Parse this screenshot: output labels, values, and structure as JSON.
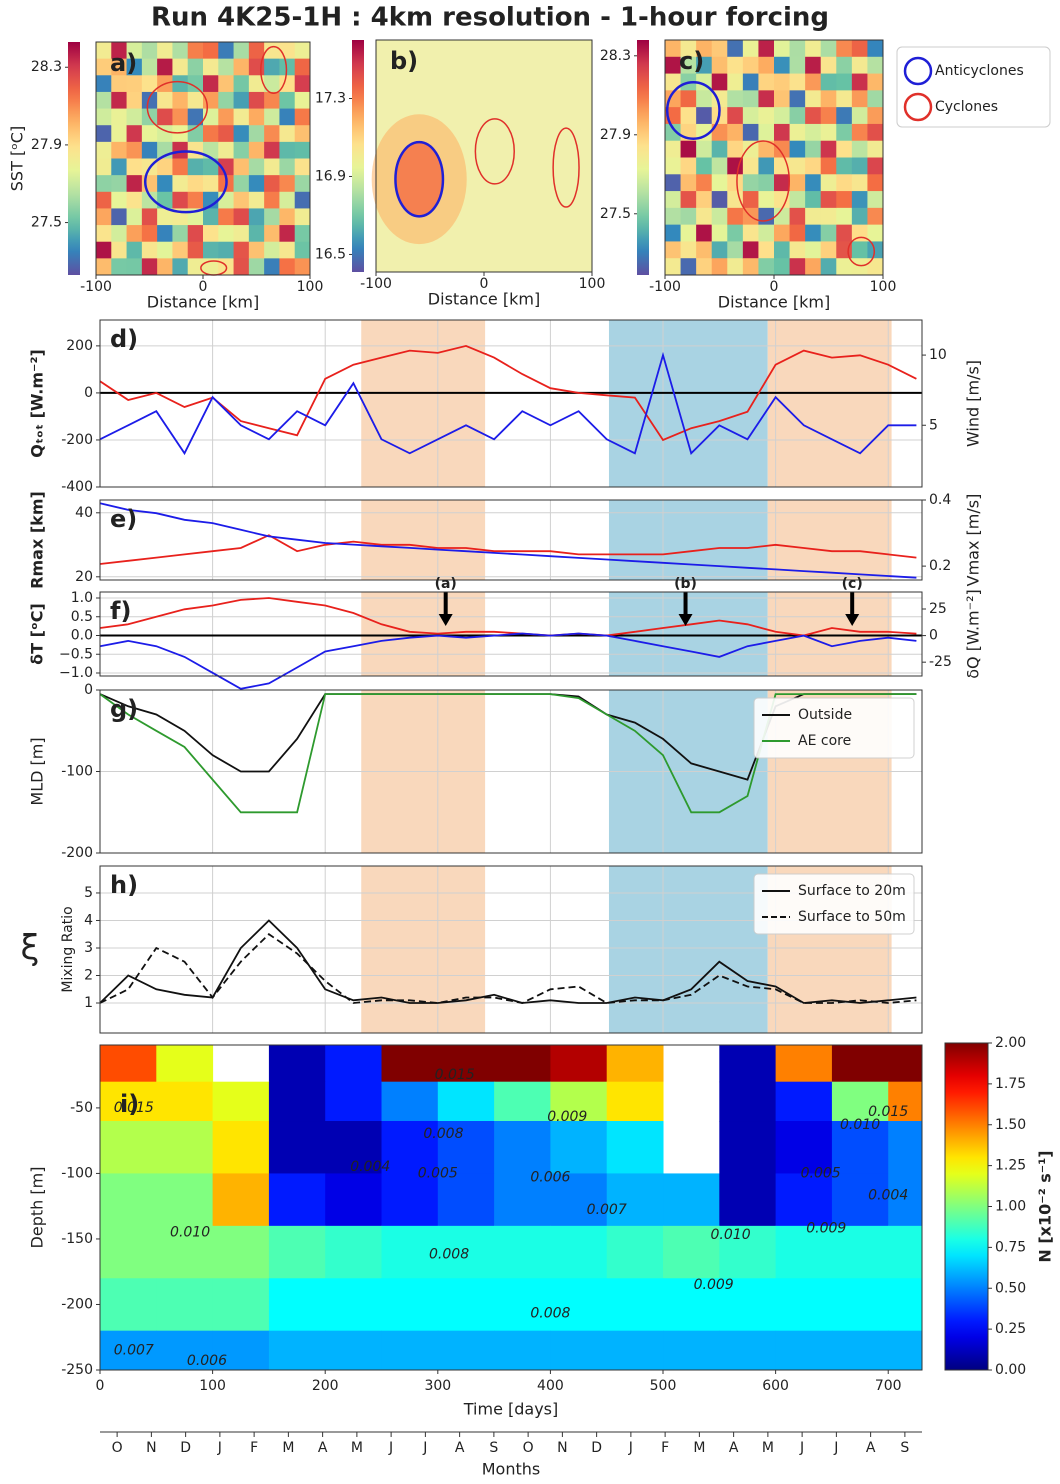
{
  "title": "Run 4K25-1H : 4km resolution - 1-hour forcing",
  "eddy_legend": [
    {
      "name": "Anticyclones",
      "color": "#1f1fd6"
    },
    {
      "name": "Cyclones",
      "color": "#e0302a"
    }
  ],
  "periods": [
    {
      "x0": 232,
      "x1": 342,
      "color": "#f9d8bc"
    },
    {
      "x0": 452,
      "x1": 593,
      "color": "#a9d3e3"
    },
    {
      "x0": 593,
      "x1": 703,
      "color": "#f9d8bc"
    }
  ],
  "months_axis": {
    "label": "Months",
    "ticks": [
      "O",
      "N",
      "D",
      "J",
      "F",
      "M",
      "A",
      "M",
      "J",
      "J",
      "A",
      "S",
      "O",
      "N",
      "D",
      "J",
      "F",
      "M",
      "A",
      "M",
      "J",
      "J",
      "A",
      "S"
    ]
  },
  "chart_data": [
    {
      "type": "map",
      "panel_label": "a)",
      "ylabel": "SST [ᵒC]",
      "xlabel": "Distance [km]",
      "xlim": [
        -100,
        100
      ],
      "xticks": [
        -100,
        0,
        100
      ],
      "clim": [
        27.23,
        28.43
      ],
      "cticks": [
        27.5,
        27.9,
        28.3
      ]
    },
    {
      "type": "map",
      "panel_label": "b)",
      "xlabel": "Distance [km]",
      "xlim": [
        -100,
        100
      ],
      "xticks": [
        -100,
        0,
        100
      ],
      "clim": [
        16.41,
        17.6
      ],
      "cticks": [
        16.5,
        16.9,
        17.3
      ]
    },
    {
      "type": "map",
      "panel_label": "c)",
      "xlabel": "Distance [km]",
      "xlim": [
        -100,
        100
      ],
      "xticks": [
        -100,
        0,
        100
      ],
      "clim": [
        27.19,
        28.38
      ],
      "cticks": [
        27.5,
        27.9,
        28.3
      ]
    },
    {
      "type": "line",
      "panel_label": "d)",
      "ylabel": "Qₜₒₜ [W.m⁻²]",
      "y2label": "Wind [m/s]",
      "grid": true,
      "zero_line": true,
      "xlim": [
        0,
        730
      ],
      "xticks": [
        0,
        100,
        200,
        300,
        400,
        500,
        600,
        700
      ],
      "ylim": [
        -400,
        310
      ],
      "yticks": [
        -400,
        -200,
        0,
        200
      ],
      "y2lim": [
        0.6,
        12.5
      ],
      "y2ticks": [
        5,
        10
      ],
      "x": [
        0,
        25,
        50,
        75,
        100,
        125,
        150,
        175,
        200,
        225,
        250,
        275,
        300,
        325,
        350,
        375,
        400,
        425,
        450,
        475,
        500,
        525,
        550,
        575,
        600,
        625,
        650,
        675,
        700,
        725
      ],
      "series": [
        {
          "color": "#e8211c",
          "values": [
            50,
            -30,
            0,
            -60,
            -20,
            -120,
            -150,
            -180,
            60,
            120,
            150,
            180,
            170,
            200,
            150,
            80,
            20,
            0,
            -10,
            -20,
            -200,
            -150,
            -120,
            -80,
            120,
            180,
            150,
            160,
            120,
            60
          ]
        },
        {
          "color": "#1c1ce8",
          "axis": "y2",
          "values": [
            4,
            5,
            6,
            3,
            7,
            5,
            4,
            6,
            5,
            8,
            4,
            3,
            4,
            5,
            4,
            6,
            5,
            6,
            4,
            3,
            10,
            3,
            5,
            4,
            7,
            5,
            4,
            3,
            5,
            5
          ]
        }
      ]
    },
    {
      "type": "line",
      "panel_label": "e)",
      "ylabel": "Rmax [km]",
      "y2label": "Vmax [m/s]",
      "grid": true,
      "xlim": [
        0,
        730
      ],
      "xticks": [
        0,
        100,
        200,
        300,
        400,
        500,
        600,
        700
      ],
      "ylim": [
        19,
        44
      ],
      "yticks": [
        20,
        40
      ],
      "y2lim": [
        0.158,
        0.4
      ],
      "y2ticks": [
        0.2,
        0.4
      ],
      "x": [
        0,
        25,
        50,
        75,
        100,
        125,
        150,
        175,
        200,
        225,
        250,
        275,
        300,
        325,
        350,
        375,
        400,
        425,
        450,
        475,
        500,
        525,
        550,
        575,
        600,
        625,
        650,
        675,
        700,
        725
      ],
      "series": [
        {
          "color": "#e8211c",
          "values": [
            24,
            25,
            26,
            27,
            28,
            29,
            33,
            28,
            30,
            31,
            30,
            30,
            29,
            29,
            28,
            28,
            28,
            27,
            27,
            27,
            27,
            28,
            29,
            29,
            30,
            29,
            28,
            28,
            27,
            26
          ]
        },
        {
          "color": "#1c1ce8",
          "axis": "y2",
          "values": [
            0.39,
            0.37,
            0.36,
            0.34,
            0.33,
            0.31,
            0.29,
            0.28,
            0.27,
            0.265,
            0.26,
            0.255,
            0.25,
            0.245,
            0.24,
            0.235,
            0.23,
            0.225,
            0.22,
            0.215,
            0.21,
            0.205,
            0.2,
            0.195,
            0.19,
            0.185,
            0.18,
            0.175,
            0.17,
            0.165
          ]
        }
      ]
    },
    {
      "type": "line",
      "panel_label": "f)",
      "ylabel": "δT [ᵒC]",
      "y2label": "δQ [W.m⁻²]",
      "grid": true,
      "zero_line": true,
      "xlim": [
        0,
        730
      ],
      "xticks": [
        0,
        100,
        200,
        300,
        400,
        500,
        600,
        700
      ],
      "ylim": [
        -1.08,
        1.16
      ],
      "yticks": [
        {
          "value": -1,
          "label": "−1.0"
        },
        {
          "value": -0.5,
          "label": "−0.5"
        },
        {
          "value": 0,
          "label": "0.0"
        },
        {
          "value": 0.5,
          "label": "0.5"
        },
        {
          "value": 1,
          "label": "1.0"
        }
      ],
      "y2lim": [
        -38,
        41
      ],
      "y2ticks": [
        -25,
        0,
        25
      ],
      "annotations": [
        {
          "text": "(a)",
          "x": 307
        },
        {
          "text": "(b)",
          "x": 520
        },
        {
          "text": "(c)",
          "x": 668
        }
      ],
      "x": [
        0,
        25,
        50,
        75,
        100,
        125,
        150,
        175,
        200,
        225,
        250,
        275,
        300,
        325,
        350,
        375,
        400,
        425,
        450,
        475,
        500,
        525,
        550,
        575,
        600,
        625,
        650,
        675,
        700,
        725
      ],
      "series": [
        {
          "color": "#e8211c",
          "values": [
            0.2,
            0.3,
            0.5,
            0.7,
            0.8,
            0.95,
            1.0,
            0.9,
            0.8,
            0.6,
            0.3,
            0.1,
            0.05,
            0.1,
            0.1,
            0.05,
            0.0,
            0.05,
            0.0,
            0.1,
            0.2,
            0.3,
            0.4,
            0.3,
            0.1,
            0.0,
            0.2,
            0.1,
            0.1,
            0.05
          ]
        },
        {
          "color": "#1c1ce8",
          "axis": "y2",
          "values": [
            -10,
            -5,
            -10,
            -20,
            -35,
            -50,
            -45,
            -30,
            -15,
            -10,
            -5,
            -2,
            0,
            -2,
            0,
            2,
            0,
            2,
            0,
            -5,
            -10,
            -15,
            -20,
            -10,
            -5,
            0,
            -10,
            -5,
            -2,
            -5
          ]
        }
      ]
    },
    {
      "type": "line",
      "panel_label": "g)",
      "ylabel": "MLD [m]",
      "grid": true,
      "legend": "upper right",
      "xlim": [
        0,
        730
      ],
      "xticks": [
        0,
        100,
        200,
        300,
        400,
        500,
        600,
        700
      ],
      "ylim": [
        -200,
        0
      ],
      "yticks": [
        -200,
        -100,
        0
      ],
      "x": [
        0,
        25,
        50,
        75,
        100,
        125,
        150,
        175,
        200,
        225,
        250,
        275,
        300,
        325,
        350,
        375,
        400,
        425,
        450,
        475,
        500,
        525,
        550,
        575,
        600,
        625,
        650,
        675,
        700,
        725
      ],
      "series": [
        {
          "name": "Outside",
          "color": "#111111",
          "values": [
            -5,
            -20,
            -30,
            -50,
            -80,
            -100,
            -100,
            -60,
            -5,
            -5,
            -5,
            -5,
            -5,
            -5,
            -5,
            -5,
            -5,
            -8,
            -30,
            -40,
            -60,
            -90,
            -100,
            -110,
            -20,
            -5,
            -5,
            -5,
            -5,
            -5
          ]
        },
        {
          "name": "AE core",
          "color": "#2e9a2e",
          "values": [
            -5,
            -30,
            -50,
            -70,
            -110,
            -150,
            -150,
            -150,
            -5,
            -5,
            -5,
            -5,
            -5,
            -5,
            -5,
            -5,
            -5,
            -10,
            -30,
            -50,
            -80,
            -150,
            -150,
            -130,
            -5,
            -5,
            -5,
            -5,
            -5,
            -5
          ]
        }
      ]
    },
    {
      "type": "line",
      "panel_label": "h)",
      "ylabel": "Mixing Ratio",
      "symbol": "ξ",
      "grid": true,
      "legend": "upper right",
      "xlim": [
        0,
        730
      ],
      "xticks": [
        0,
        100,
        200,
        300,
        400,
        500,
        600,
        700
      ],
      "ylim": [
        -0.09,
        5.98
      ],
      "yticks": [
        1,
        2,
        3,
        4,
        5
      ],
      "x": [
        0,
        25,
        50,
        75,
        100,
        125,
        150,
        175,
        200,
        225,
        250,
        275,
        300,
        325,
        350,
        375,
        400,
        425,
        450,
        475,
        500,
        525,
        550,
        575,
        600,
        625,
        650,
        675,
        700,
        725
      ],
      "series": [
        {
          "name": "Surface to 20m",
          "color": "#111111",
          "values": [
            1.0,
            2.0,
            1.5,
            1.3,
            1.2,
            3.0,
            4.0,
            3.0,
            1.5,
            1.1,
            1.2,
            1.0,
            1.0,
            1.1,
            1.3,
            1.0,
            1.1,
            1.0,
            1.0,
            1.2,
            1.1,
            1.5,
            2.5,
            1.8,
            1.6,
            1.0,
            1.1,
            1.0,
            1.1,
            1.2
          ]
        },
        {
          "name": "Surface to 50m",
          "color": "#111111",
          "dash": true,
          "values": [
            1.0,
            1.5,
            3.0,
            2.5,
            1.2,
            2.5,
            3.5,
            2.8,
            1.8,
            1.0,
            1.1,
            1.1,
            1.0,
            1.2,
            1.2,
            1.0,
            1.5,
            1.6,
            1.0,
            1.1,
            1.1,
            1.3,
            2.0,
            1.6,
            1.5,
            1.0,
            1.0,
            1.1,
            1.0,
            1.1
          ]
        }
      ]
    },
    {
      "type": "heatmap",
      "panel_label": "i)",
      "ylabel": "Depth [m]",
      "xlabel": "Time [days]",
      "colorbar_label": "N [x10⁻² s⁻¹]",
      "xlim": [
        0,
        730
      ],
      "xticks": [
        0,
        100,
        200,
        300,
        400,
        500,
        600,
        700
      ],
      "ylim": [
        -250,
        -2
      ],
      "yticks": [
        -250,
        -200,
        -150,
        -100,
        -50
      ],
      "x": [
        0,
        50,
        100,
        150,
        200,
        250,
        300,
        350,
        400,
        450,
        500,
        550,
        600,
        650,
        700,
        730
      ],
      "y": [
        -2,
        -30,
        -60,
        -100,
        -140,
        -180,
        -220,
        -250
      ],
      "z": [
        [
          1.6,
          1.2,
          null,
          0.1,
          0.3,
          2.0,
          2.0,
          2.0,
          1.9,
          1.4,
          null,
          0.1,
          1.5,
          2.0,
          2.0
        ],
        [
          1.3,
          1.3,
          1.2,
          0.1,
          0.3,
          0.5,
          0.7,
          0.9,
          1.1,
          1.3,
          null,
          0.1,
          0.3,
          1.0,
          1.5
        ],
        [
          1.1,
          1.1,
          1.3,
          0.1,
          0.1,
          0.3,
          0.4,
          0.5,
          0.6,
          0.7,
          null,
          0.1,
          0.2,
          0.4,
          0.5
        ],
        [
          1.0,
          1.0,
          1.4,
          0.3,
          0.2,
          0.3,
          0.4,
          0.5,
          0.5,
          0.6,
          0.6,
          0.1,
          0.3,
          0.4,
          0.5
        ],
        [
          1.0,
          1.0,
          1.0,
          0.9,
          0.85,
          0.8,
          0.8,
          0.8,
          0.8,
          0.85,
          0.9,
          0.85,
          0.8,
          0.8,
          0.8
        ],
        [
          0.9,
          0.9,
          0.9,
          0.75,
          0.75,
          0.75,
          0.75,
          0.75,
          0.75,
          0.75,
          0.75,
          0.75,
          0.75,
          0.75,
          0.75
        ],
        [
          0.55,
          0.55,
          0.55,
          0.6,
          0.6,
          0.6,
          0.6,
          0.6,
          0.6,
          0.6,
          0.6,
          0.6,
          0.6,
          0.6,
          0.6
        ]
      ],
      "clim": [
        0,
        2
      ],
      "colorbar_ticks": [
        {
          "value": 0,
          "label": "0.00"
        },
        {
          "value": 0.25,
          "label": "0.25"
        },
        {
          "value": 0.5,
          "label": "0.50"
        },
        {
          "value": 0.75,
          "label": "0.75"
        },
        {
          "value": 1,
          "label": "1.00"
        },
        {
          "value": 1.25,
          "label": "1.25"
        },
        {
          "value": 1.5,
          "label": "1.50"
        },
        {
          "value": 1.75,
          "label": "1.75"
        },
        {
          "value": 2,
          "label": "2.00"
        }
      ],
      "contour_labels": [
        {
          "text": "0.015",
          "x": 30,
          "y": -50
        },
        {
          "text": "0.010",
          "x": 80,
          "y": -145
        },
        {
          "text": "0.008",
          "x": 310,
          "y": -162
        },
        {
          "text": "0.008",
          "x": 400,
          "y": -207
        },
        {
          "text": "0.007",
          "x": 30,
          "y": -235
        },
        {
          "text": "0.006",
          "x": 95,
          "y": -243
        },
        {
          "text": "0.015",
          "x": 315,
          "y": -25
        },
        {
          "text": "0.009",
          "x": 415,
          "y": -57
        },
        {
          "text": "0.008",
          "x": 305,
          "y": -70
        },
        {
          "text": "0.006",
          "x": 400,
          "y": -103
        },
        {
          "text": "0.005",
          "x": 300,
          "y": -100
        },
        {
          "text": "0.004",
          "x": 240,
          "y": -95
        },
        {
          "text": "0.007",
          "x": 450,
          "y": -128
        },
        {
          "text": "0.010",
          "x": 560,
          "y": -147
        },
        {
          "text": "0.009",
          "x": 545,
          "y": -185
        },
        {
          "text": "0.009",
          "x": 645,
          "y": -142
        },
        {
          "text": "0.015",
          "x": 700,
          "y": -53
        },
        {
          "text": "0.010",
          "x": 675,
          "y": -63
        },
        {
          "text": "0.005",
          "x": 640,
          "y": -100
        },
        {
          "text": "0.004",
          "x": 700,
          "y": -117
        }
      ]
    }
  ]
}
